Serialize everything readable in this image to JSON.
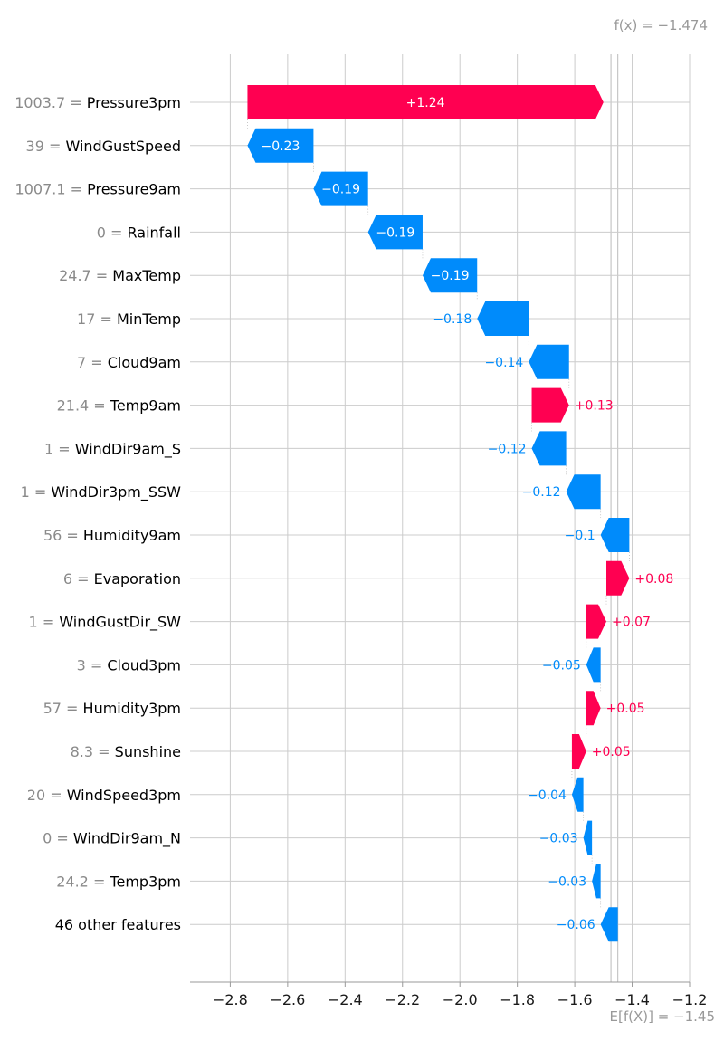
{
  "chart_data": {
    "type": "waterfall",
    "base_value": -1.45,
    "output_value": -1.474,
    "base_label": "E[f(X)] = −1.45",
    "output_label": "f(x) = −1.474",
    "xlim": [
      -2.94,
      -1.2
    ],
    "xticks": [
      "−2.8",
      "−2.6",
      "−2.4",
      "−2.2",
      "−2.0",
      "−1.8",
      "−1.6",
      "−1.4",
      "−1.2"
    ],
    "xtick_values": [
      -2.8,
      -2.6,
      -2.4,
      -2.2,
      -2.0,
      -1.8,
      -1.6,
      -1.4,
      -1.2
    ],
    "colors": {
      "positive": "#ff0051",
      "negative": "#008bfb",
      "grid": "#cccccc",
      "axis": "#999999",
      "muted": "#999999"
    },
    "features": [
      {
        "value": "1003.7",
        "name": "Pressure3pm",
        "shap": 1.24,
        "label": "+1.24"
      },
      {
        "value": "39",
        "name": "WindGustSpeed",
        "shap": -0.23,
        "label": "−0.23"
      },
      {
        "value": "1007.1",
        "name": "Pressure9am",
        "shap": -0.19,
        "label": "−0.19"
      },
      {
        "value": "0",
        "name": "Rainfall",
        "shap": -0.19,
        "label": "−0.19"
      },
      {
        "value": "24.7",
        "name": "MaxTemp",
        "shap": -0.19,
        "label": "−0.19"
      },
      {
        "value": "17",
        "name": "MinTemp",
        "shap": -0.18,
        "label": "−0.18"
      },
      {
        "value": "7",
        "name": "Cloud9am",
        "shap": -0.14,
        "label": "−0.14"
      },
      {
        "value": "21.4",
        "name": "Temp9am",
        "shap": 0.13,
        "label": "+0.13"
      },
      {
        "value": "1",
        "name": "WindDir9am_S",
        "shap": -0.12,
        "label": "−0.12"
      },
      {
        "value": "1",
        "name": "WindDir3pm_SSW",
        "shap": -0.12,
        "label": "−0.12"
      },
      {
        "value": "56",
        "name": "Humidity9am",
        "shap": -0.1,
        "label": "−0.1"
      },
      {
        "value": "6",
        "name": "Evaporation",
        "shap": 0.08,
        "label": "+0.08"
      },
      {
        "value": "1",
        "name": "WindGustDir_SW",
        "shap": 0.07,
        "label": "+0.07"
      },
      {
        "value": "3",
        "name": "Cloud3pm",
        "shap": -0.05,
        "label": "−0.05"
      },
      {
        "value": "57",
        "name": "Humidity3pm",
        "shap": 0.05,
        "label": "+0.05"
      },
      {
        "value": "8.3",
        "name": "Sunshine",
        "shap": 0.05,
        "label": "+0.05"
      },
      {
        "value": "20",
        "name": "WindSpeed3pm",
        "shap": -0.04,
        "label": "−0.04"
      },
      {
        "value": "0",
        "name": "WindDir9am_N",
        "shap": -0.03,
        "label": "−0.03"
      },
      {
        "value": "24.2",
        "name": "Temp3pm",
        "shap": -0.03,
        "label": "−0.03"
      },
      {
        "value": "",
        "name": "46 other features",
        "shap": -0.06,
        "label": "−0.06"
      }
    ]
  }
}
